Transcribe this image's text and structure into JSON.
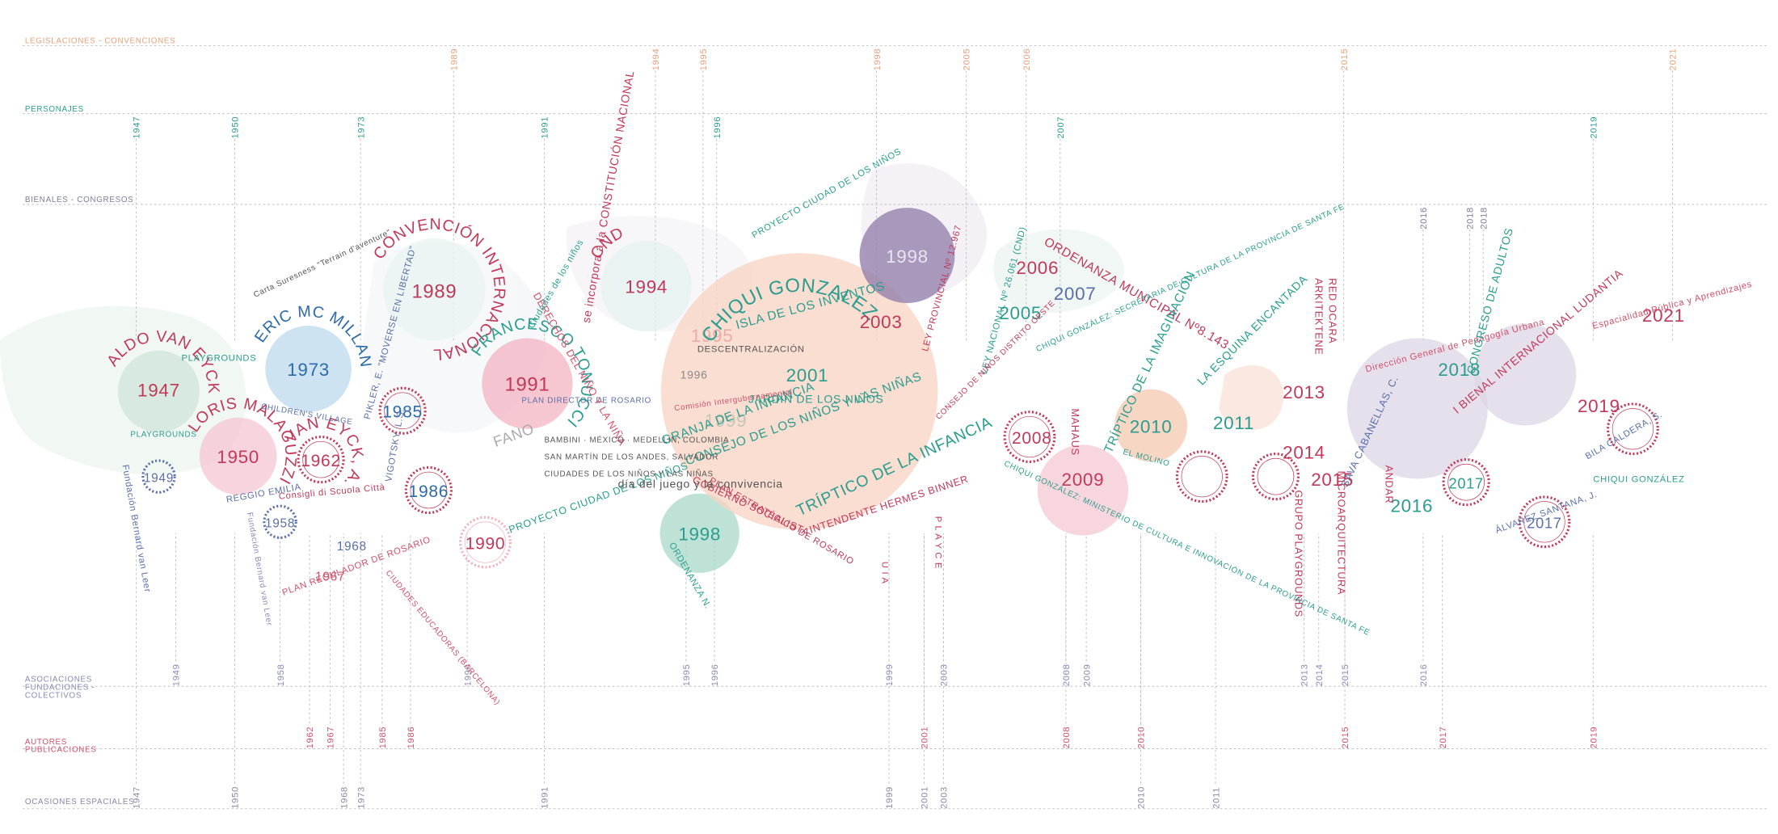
{
  "lanes": [
    {
      "label_lines": [
        "LEGISLACIONES - CONVENCIONES"
      ],
      "years": [
        "1989",
        "1994",
        "1995",
        "1998",
        "2005",
        "2006",
        "2015",
        "2021"
      ]
    },
    {
      "label_lines": [
        "PERSONAJES"
      ],
      "years": [
        "1947",
        "1950",
        "1973",
        "1991",
        "1996",
        "2007",
        "2019"
      ]
    },
    {
      "label_lines": [
        "BIENALES - CONGRESOS"
      ],
      "years": [
        "2016",
        "2018",
        "2018"
      ]
    },
    {
      "label_lines": [
        "ASOCIACIONES",
        "FUNDACIONES -",
        "COLECTIVOS"
      ],
      "years": [
        "1949",
        "1958",
        "1990",
        "1995",
        "1996",
        "1999",
        "2003",
        "2008",
        "2009",
        "2013",
        "2014",
        "2015",
        "2016"
      ]
    },
    {
      "label_lines": [
        "AUTORES",
        "PUBLICACIONES"
      ],
      "years": [
        "1962",
        "1967",
        "1985",
        "1986",
        "2001",
        "2008",
        "2010",
        "2015",
        "2017",
        "2019"
      ]
    },
    {
      "label_lines": [
        "OCASIONES ESPACIALES"
      ],
      "years": [
        "1947",
        "1950",
        "1968",
        "1973",
        "1991",
        "1999",
        "2001",
        "2003",
        "2010",
        "2011"
      ]
    }
  ],
  "nodes": [
    {
      "year": "1947",
      "name": "ALDO VAN EYCK"
    },
    {
      "year": "1950",
      "name": "LORIS MALAGUZZI"
    },
    {
      "year": "1973",
      "name": "ERIC MC MILLAN"
    },
    {
      "year": "1962",
      "name": "VAN EYCK, A."
    },
    {
      "year": "1949"
    },
    {
      "year": "1958"
    },
    {
      "year": "1989",
      "name": "CONVENCIÓN INTERNACIONAL"
    },
    {
      "year": "1985"
    },
    {
      "year": "1986"
    },
    {
      "year": "1991",
      "name": "FRANCESCO TONUCCI"
    },
    {
      "year": "1990"
    },
    {
      "year": "1994",
      "name": "CND"
    },
    {
      "year": "1995"
    },
    {
      "year": "1999"
    },
    {
      "year": "1998"
    },
    {
      "year": "2001",
      "name": "CHIQUI GONZALEZ"
    },
    {
      "year": "1998"
    },
    {
      "year": "2003"
    },
    {
      "year": "2006"
    },
    {
      "year": "2007"
    },
    {
      "year": "2005"
    },
    {
      "year": "2008"
    },
    {
      "year": "2009"
    },
    {
      "year": "2010"
    },
    {
      "year": "2011"
    },
    {
      "year": "2013"
    },
    {
      "year": "2014"
    },
    {
      "year": "2015"
    },
    {
      "year": "2016"
    },
    {
      "year": "2017"
    },
    {
      "year": "2017"
    },
    {
      "year": "2018"
    },
    {
      "year": "2019"
    },
    {
      "year": "2021"
    },
    {
      "year": "1996"
    }
  ],
  "labels": [
    "PLAYGROUNDS",
    "PLAYGROUNDS",
    "Fundación Bernard van Leer",
    "REGGIO EMILIA",
    "Fundación Bernard van Leer",
    "PLAN REGULADOR DE ROSARIO",
    "1967",
    "1968",
    "CHILDREN'S VILLAGE",
    "Carta Suresness \"Terrain d'aventure\"",
    "PIKLER, E. \"MOVERSE EN LIBERTAD\"",
    "CIUDADES EDUCADORAS (BARCELONA)",
    "PROYECTO CIUDAD DE LOS NIÑOS",
    "FANO",
    "PLAN DIRECTOR DE ROSARIO",
    "DERECHOS DEL NIÑO Y LA NIÑA",
    "se incorpora a la CONSTITUCIÓN NACIONAL",
    "ISLA DE LOS INVENTOS",
    "JARDÍN DE LOS NIÑOS",
    "GRANJA DE LA INFANCIA",
    "CONSEJO DE LOS NIÑOS Y LAS NIÑAS",
    "GOBIERNO SOCIALISTA",
    "PLAN ESTRATÉGICO DE ROSARIO",
    "día del juego y la convivencia",
    "TRÍPTICO DE LA INFANCIA",
    "INTENDENTE HERMES BINNER",
    "ORDENANZA N.",
    "ORDENANZA MUNICIPAL Nº8.143",
    "LEY PROVINCIAL Nº 12.967",
    "LEY NACIONAL Nº 26.061 (CND)",
    "CHIQUI GONZÁLEZ: SECRETARIA DE CULTURA DE LA PROVINCIA DE SANTA FE",
    "TRÍPTICO DE LA IMAGINACIÓN",
    "LA ESQUINA ENCANTADA",
    "EL MOLINO",
    "MAHAUS",
    "U I A",
    "P L A Y C E",
    "ARKITEKTENE",
    "RED OCARA",
    "GRUPO PLAYGROUNDS",
    "MICROARQUITECTURA",
    "ANDAR",
    "Dirección General de Pedagogía Urbana",
    "I BIENAL INTERNACIONAL LUDANTIA",
    "CONGRESO DE ADULTOS",
    "Espacialidad Pública y Aprendizajes",
    "CHIQUI GONZÁLEZ: MINISTERIO DE CULTURA E INNOVACIÓN DE LA PROVINCIA DE SANTA FE",
    "SAVA CABANELLAS, C.",
    "ÁLVAREZ SANTANA, J.",
    "BILA CALDERA, S.",
    "CHIQUI GONZÁLEZ",
    "PROYECTO CIUDAD DE LOS NIÑOS",
    "BAMBINI · MÉXICO · MEDELLÍN, COLOMBIA",
    "SAN MARTÍN DE LOS ANDES, SALVADOR",
    "CIUDADES DE LOS NIÑOS Y LAS NIÑAS",
    "DESCENTRALIZACIÓN",
    "Comisión Intergubernamental",
    "CONSEJO DE NIÑOS DISTRITO OESTE",
    "Ciudades de los niños",
    "VIGOTSKY, L.S.",
    "Consigli di Scuola Città"
  ]
}
